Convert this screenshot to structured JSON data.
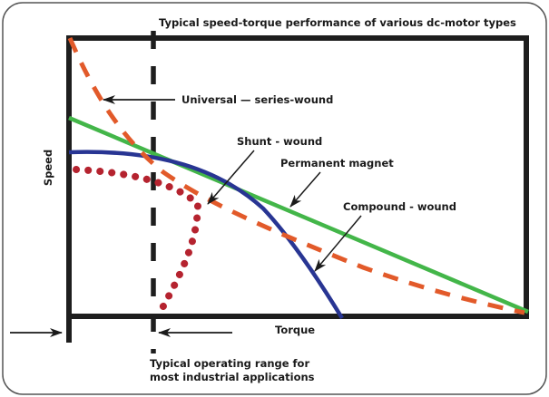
{
  "title": "Typical speed-torque performance of various dc-motor types",
  "axes": {
    "x_label": "Torque",
    "y_label": "Speed"
  },
  "colors": {
    "frame": "#1e1e1e",
    "border": "#555555",
    "universal": "#e25a2a",
    "permanent_magnet": "#43b649",
    "shunt": "#283593",
    "compound": "#b5232f",
    "annotation": "#1a1a1a"
  },
  "curves": [
    {
      "id": "universal",
      "name": "Universal — series-wound",
      "style": "dashed"
    },
    {
      "id": "permanent_magnet",
      "name": "Permanent magnet",
      "style": "solid"
    },
    {
      "id": "shunt",
      "name": "Shunt - wound",
      "style": "solid"
    },
    {
      "id": "compound",
      "name": "Compound - wound",
      "style": "dotted"
    }
  ],
  "labels": {
    "universal": "Universal — series-wound",
    "shunt": "Shunt - wound",
    "permanent_magnet": "Permanent magnet",
    "compound": "Compound - wound",
    "operating_range_line1": "Typical operating range for",
    "operating_range_line2": "most industrial applications"
  }
}
